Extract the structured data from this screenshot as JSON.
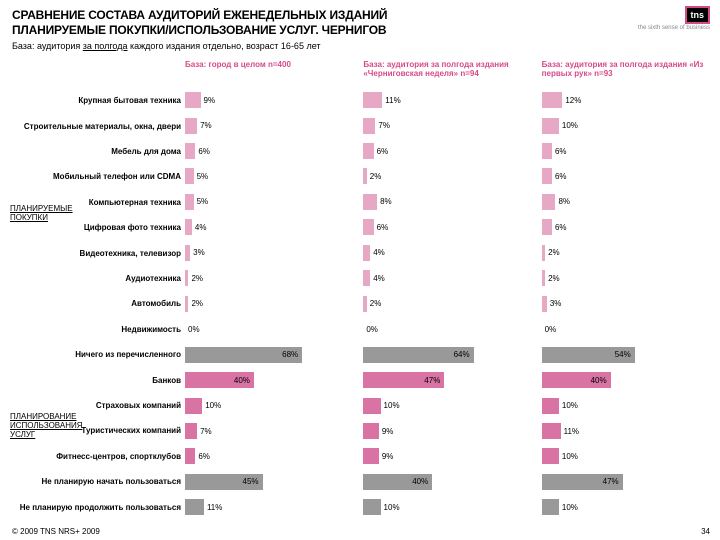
{
  "title_line1": "СРАВНЕНИЕ СОСТАВА АУДИТОРИЙ ЕЖЕНЕДЕЛЬНЫХ ИЗДАНИЙ",
  "title_line2": "ПЛАНИРУЕМЫЕ ПОКУПКИ/ИСПОЛЬЗОВАНИЕ УСЛУГ. ЧЕРНИГОВ",
  "subtitle_pre": "База: аудитория ",
  "subtitle_u": "за полгода",
  "subtitle_post": " каждого издания отдельно, возраст 16-65 лет",
  "logo_text": "tns",
  "logo_tag": "the sixth sense of business",
  "footer": "© 2009 TNS   NRS+ 2009",
  "pagenum": "34",
  "group1_label": "ПЛАНИРУЕМЫЕ ПОКУПКИ",
  "group2_label": "ПЛАНИРОВАНИЕ ИСПОЛЬЗОВАНИЯ УСЛУГ",
  "bar_color_purchases": "#e6a8c4",
  "bar_color_services": "#d873a3",
  "bar_color_none": "#999999",
  "max_pct": 100,
  "columns": [
    {
      "header": "База: город в целом n=400"
    },
    {
      "header": "База: аудитория за полгода издания «Черниговская неделя» n=94"
    },
    {
      "header": "База: аудитория за полгода издания «Из первых рук» n=93"
    }
  ],
  "rows": [
    {
      "label": "Крупная бытовая техника",
      "group": 1,
      "vals": [
        9,
        11,
        12
      ]
    },
    {
      "label": "Строительные материалы, окна, двери",
      "group": 1,
      "vals": [
        7,
        7,
        10
      ]
    },
    {
      "label": "Мебель для дома",
      "group": 1,
      "vals": [
        6,
        6,
        6
      ]
    },
    {
      "label": "Мобильный телефон или CDMA",
      "group": 1,
      "vals": [
        5,
        2,
        6
      ]
    },
    {
      "label": "Компьютерная техника",
      "group": 1,
      "vals": [
        5,
        8,
        8
      ]
    },
    {
      "label": "Цифровая фото техника",
      "group": 1,
      "vals": [
        4,
        6,
        6
      ]
    },
    {
      "label": "Видеотехника, телевизор",
      "group": 1,
      "vals": [
        3,
        4,
        2
      ]
    },
    {
      "label": "Аудиотехника",
      "group": 1,
      "vals": [
        2,
        4,
        2
      ]
    },
    {
      "label": "Автомобиль",
      "group": 1,
      "vals": [
        2,
        2,
        3
      ]
    },
    {
      "label": "Недвижимость",
      "group": 1,
      "vals": [
        0,
        0,
        0
      ]
    },
    {
      "label": "Ничего из перечисленного",
      "group": 0,
      "vals": [
        68,
        64,
        54
      ]
    },
    {
      "label": "Банков",
      "group": 2,
      "vals": [
        40,
        47,
        40
      ]
    },
    {
      "label": "Страховых компаний",
      "group": 2,
      "vals": [
        10,
        10,
        10
      ]
    },
    {
      "label": "Туристических компаний",
      "group": 2,
      "vals": [
        7,
        9,
        11
      ]
    },
    {
      "label": "Фитнесс-центров, спортклубов",
      "group": 2,
      "vals": [
        6,
        9,
        10
      ]
    },
    {
      "label": "Не планирую начать пользоваться",
      "group": 0,
      "vals": [
        45,
        40,
        47
      ]
    },
    {
      "label": "Не планирую продолжить пользоваться",
      "group": 0,
      "vals": [
        11,
        10,
        10
      ]
    }
  ]
}
